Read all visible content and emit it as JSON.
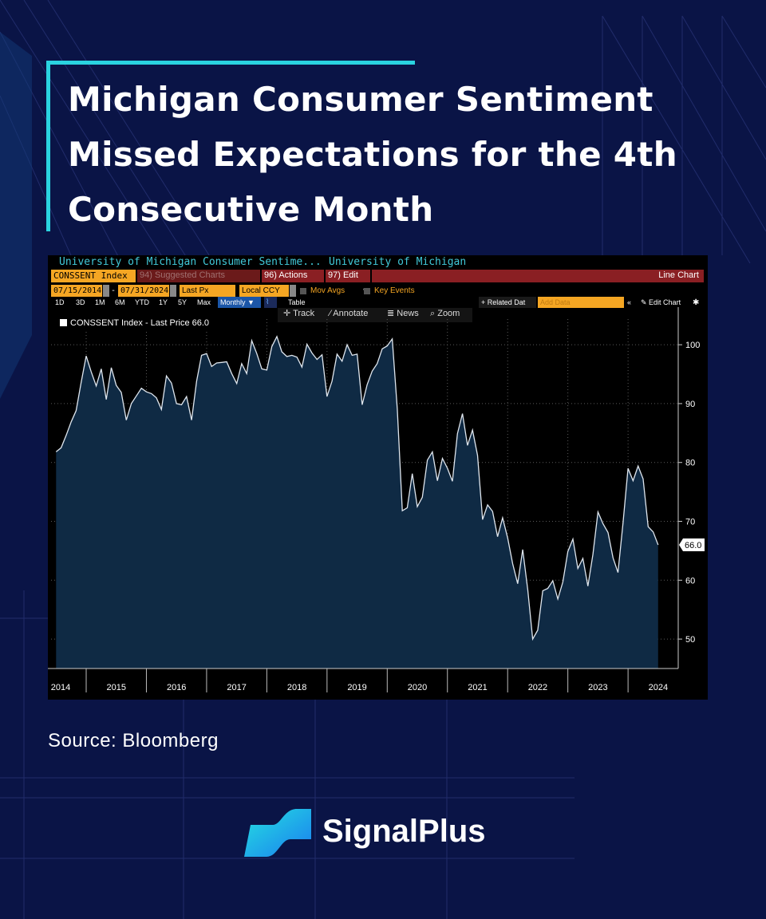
{
  "headline": {
    "line1": "Michigan Consumer Sentiment",
    "line2": "Missed Expectations for the 4th",
    "line3": "Consecutive Month"
  },
  "terminal": {
    "title_left": "University of Michigan Consumer Sentime...",
    "title_right": "University of Michigan",
    "ticker": "CONSSENT Index",
    "suggested": "94) Suggested Charts",
    "actions": "96) Actions",
    "edit": "97) Edit",
    "chart_mode": "Line Chart",
    "date_start": "07/15/2014",
    "date_end": "07/31/2024",
    "price_field": "Last Px",
    "currency": "Local CCY",
    "mov_avgs": "Mov Avgs",
    "key_events": "Key Events",
    "ranges": [
      "1D",
      "3D",
      "1M",
      "6M",
      "YTD",
      "1Y",
      "5Y",
      "Max"
    ],
    "frequency": "Monthly",
    "table": "Table",
    "related": "+ Related Dat",
    "add_data_placeholder": "Add Data",
    "edit_chart": "Edit Chart",
    "track": "Track",
    "annotate": "Annotate",
    "news": "News",
    "zoom": "Zoom",
    "legend": "CONSSENT Index - Last Price 66.0",
    "last_value_label": "66.0"
  },
  "chart_data": {
    "type": "area",
    "title": "",
    "series": [
      {
        "name": "CONSSENT Index - Last Price",
        "x": [
          "2014-07",
          "2014-08",
          "2014-09",
          "2014-10",
          "2014-11",
          "2014-12",
          "2015-01",
          "2015-02",
          "2015-03",
          "2015-04",
          "2015-05",
          "2015-06",
          "2015-07",
          "2015-08",
          "2015-09",
          "2015-10",
          "2015-11",
          "2015-12",
          "2016-01",
          "2016-02",
          "2016-03",
          "2016-04",
          "2016-05",
          "2016-06",
          "2016-07",
          "2016-08",
          "2016-09",
          "2016-10",
          "2016-11",
          "2016-12",
          "2017-01",
          "2017-02",
          "2017-03",
          "2017-04",
          "2017-05",
          "2017-06",
          "2017-07",
          "2017-08",
          "2017-09",
          "2017-10",
          "2017-11",
          "2017-12",
          "2018-01",
          "2018-02",
          "2018-03",
          "2018-04",
          "2018-05",
          "2018-06",
          "2018-07",
          "2018-08",
          "2018-09",
          "2018-10",
          "2018-11",
          "2018-12",
          "2019-01",
          "2019-02",
          "2019-03",
          "2019-04",
          "2019-05",
          "2019-06",
          "2019-07",
          "2019-08",
          "2019-09",
          "2019-10",
          "2019-11",
          "2019-12",
          "2020-01",
          "2020-02",
          "2020-03",
          "2020-04",
          "2020-05",
          "2020-06",
          "2020-07",
          "2020-08",
          "2020-09",
          "2020-10",
          "2020-11",
          "2020-12",
          "2021-01",
          "2021-02",
          "2021-03",
          "2021-04",
          "2021-05",
          "2021-06",
          "2021-07",
          "2021-08",
          "2021-09",
          "2021-10",
          "2021-11",
          "2021-12",
          "2022-01",
          "2022-02",
          "2022-03",
          "2022-04",
          "2022-05",
          "2022-06",
          "2022-07",
          "2022-08",
          "2022-09",
          "2022-10",
          "2022-11",
          "2022-12",
          "2023-01",
          "2023-02",
          "2023-03",
          "2023-04",
          "2023-05",
          "2023-06",
          "2023-07",
          "2023-08",
          "2023-09",
          "2023-10",
          "2023-11",
          "2023-12",
          "2024-01",
          "2024-02",
          "2024-03",
          "2024-04",
          "2024-05",
          "2024-06",
          "2024-07"
        ],
        "values": [
          81.8,
          82.5,
          84.6,
          86.9,
          88.8,
          93.6,
          98.1,
          95.4,
          93.0,
          95.9,
          90.7,
          96.1,
          93.1,
          91.9,
          87.2,
          90.0,
          91.3,
          92.6,
          92.0,
          91.7,
          91.0,
          89.0,
          94.7,
          93.5,
          90.0,
          89.8,
          91.2,
          87.2,
          93.8,
          98.2,
          98.5,
          96.3,
          96.9,
          97.0,
          97.1,
          95.1,
          93.4,
          96.8,
          95.1,
          100.7,
          98.5,
          95.9,
          95.7,
          99.7,
          101.4,
          98.8,
          98.0,
          98.2,
          97.9,
          96.2,
          100.1,
          98.6,
          97.5,
          98.3,
          91.2,
          93.8,
          98.4,
          97.2,
          100.0,
          98.2,
          98.4,
          89.8,
          93.2,
          95.5,
          96.8,
          99.3,
          99.8,
          101.0,
          89.1,
          71.8,
          72.3,
          78.1,
          72.5,
          74.1,
          80.4,
          81.8,
          76.9,
          80.7,
          79.0,
          76.8,
          84.9,
          88.3,
          82.9,
          85.5,
          81.2,
          70.3,
          72.8,
          71.7,
          67.4,
          70.6,
          67.2,
          62.8,
          59.4,
          65.2,
          58.4,
          50.0,
          51.5,
          58.2,
          58.6,
          59.9,
          56.8,
          59.7,
          64.9,
          67.0,
          62.0,
          63.7,
          59.0,
          64.4,
          71.6,
          69.6,
          68.1,
          63.8,
          61.3,
          69.7,
          79.0,
          76.9,
          79.4,
          77.2,
          69.1,
          68.2,
          66.0
        ]
      }
    ],
    "x_tick_labels": [
      "2014",
      "2015",
      "2016",
      "2017",
      "2018",
      "2019",
      "2020",
      "2021",
      "2022",
      "2023",
      "2024"
    ],
    "y_ticks": [
      50,
      60,
      70,
      80,
      90,
      100
    ],
    "ylim": [
      45,
      103
    ],
    "xlim": [
      "2014-06",
      "2024-11"
    ],
    "grid": true,
    "legend": "top-left",
    "colors": {
      "line": "#dfe6ee",
      "fill": "#0f2a44",
      "grid": "#5a5a5a",
      "background": "#000000"
    }
  },
  "source": "Source: Bloomberg",
  "brand": {
    "name": "SignalPlus"
  }
}
